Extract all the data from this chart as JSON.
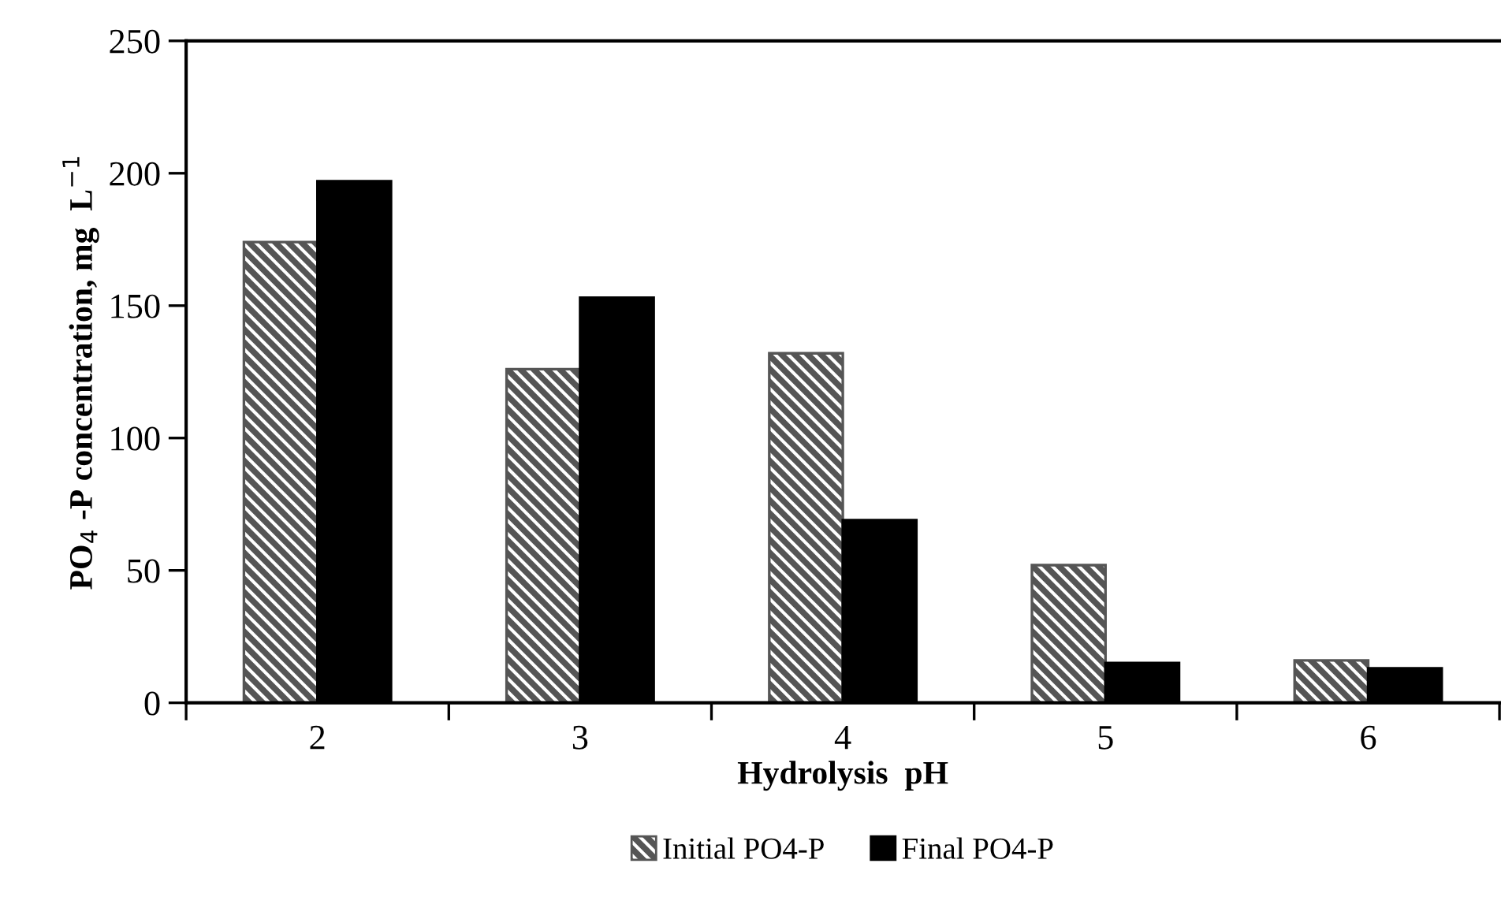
{
  "chart_data": {
    "type": "bar",
    "xlabel": "Hydrolysis  pH",
    "ylabel": "PO$_{4}$ -P concentration, mg  L$^{−1}$",
    "categories": [
      "2",
      "3",
      "4",
      "5",
      "6"
    ],
    "series": [
      {
        "name": "Initial PO4-P",
        "color": "#555555",
        "values": [
          174,
          126,
          132,
          52,
          16
        ]
      },
      {
        "name": "Final PO4-P",
        "color": "#000000",
        "values": [
          197,
          153,
          69,
          15,
          13
        ]
      }
    ],
    "ylim": [
      0,
      250
    ],
    "yticks": [
      0,
      50,
      100,
      150,
      200,
      250
    ],
    "grid": false,
    "legend": "bottom"
  }
}
